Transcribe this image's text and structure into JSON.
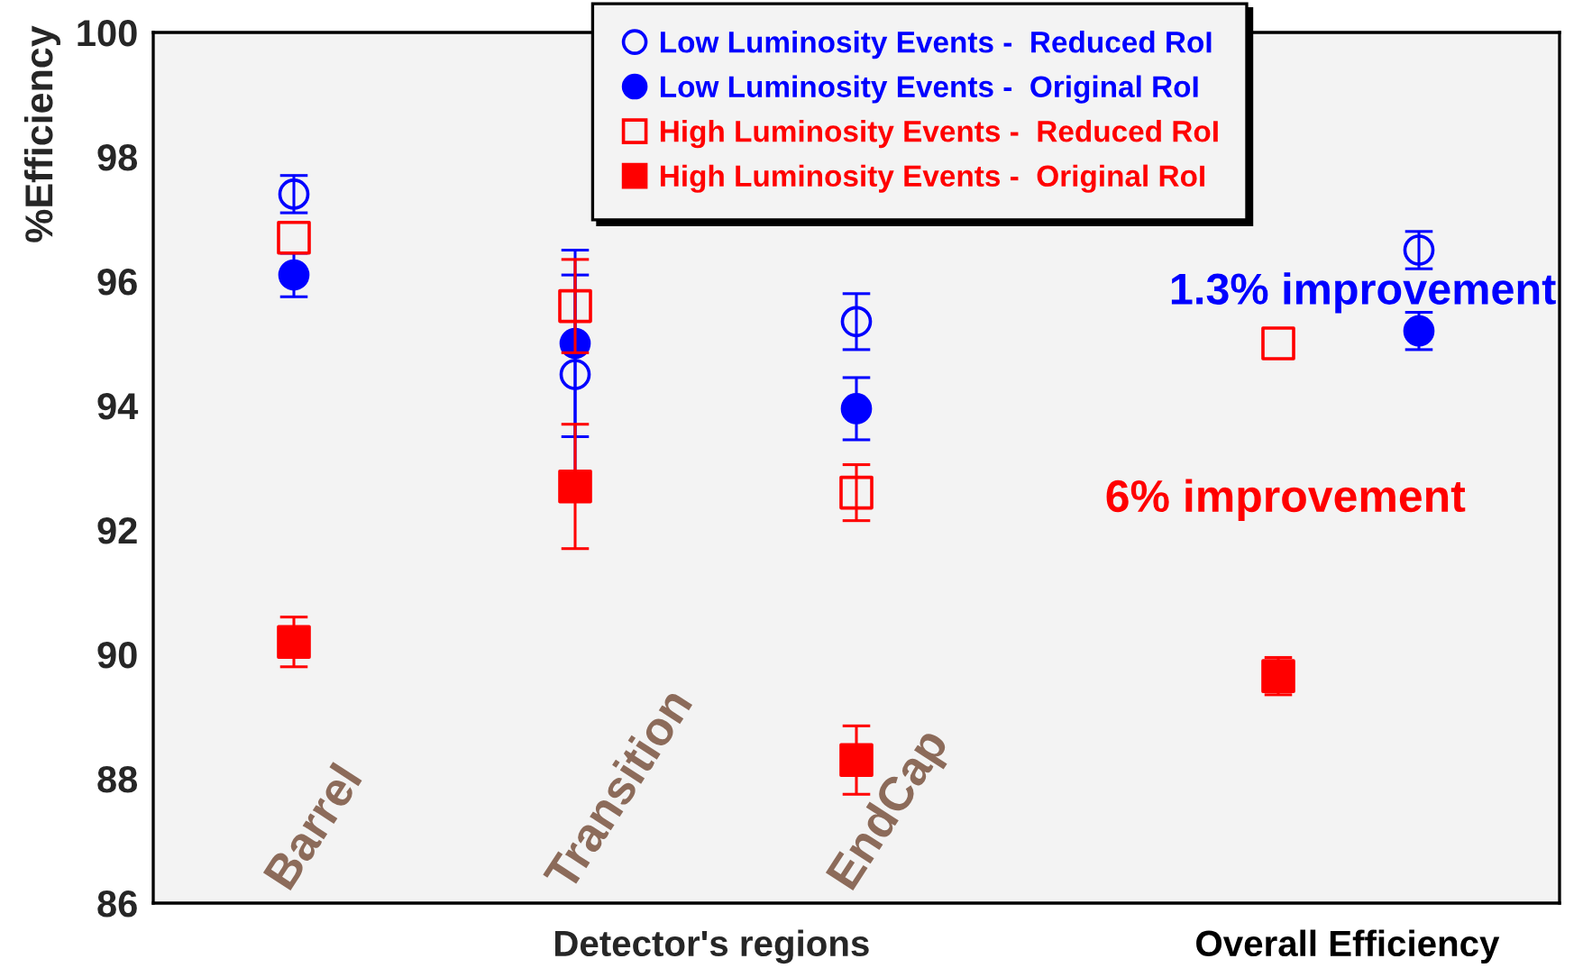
{
  "chart_data": {
    "type": "scatter",
    "ylabel": "%Efficiency",
    "xlabel": "Detector's regions",
    "annotations": [
      "1.3% improvement",
      "6% improvement",
      "Overall Efficiency"
    ],
    "categories": [
      "Barrel",
      null,
      "Transition",
      null,
      "EndCap",
      null,
      null,
      null,
      null
    ],
    "ylim": [
      86,
      100
    ],
    "yticks": [
      86,
      88,
      90,
      92,
      94,
      96,
      98,
      100
    ],
    "legend": "top",
    "series": [
      {
        "name": "Low Luminosity Events -  Reduced RoI",
        "color": "#0000ff",
        "marker": "circle",
        "values": [
          97.4,
          null,
          94.5,
          null,
          95.35,
          null,
          null,
          null,
          96.5
        ],
        "errors": [
          0.3,
          null,
          1.6,
          null,
          0.45,
          null,
          null,
          null,
          0.3
        ]
      },
      {
        "name": "Low Luminosity Events -  Original RoI",
        "color": "#0000ff",
        "marker": "circle",
        "values": [
          96.1,
          null,
          95.0,
          null,
          93.95,
          null,
          null,
          null,
          95.2
        ],
        "errors": [
          0.35,
          null,
          1.5,
          null,
          0.5,
          null,
          null,
          null,
          0.3
        ]
      },
      {
        "name": "High Luminosity Events -  Reduced RoI",
        "color": "#ff0000",
        "marker": "square",
        "values": [
          96.7,
          null,
          95.6,
          null,
          92.6,
          null,
          null,
          95.0,
          null
        ],
        "errors": [
          null,
          null,
          0.75,
          null,
          0.45,
          null,
          null,
          null,
          null
        ]
      },
      {
        "name": "High Luminosity Events -  Original RoI",
        "color": "#ff0000",
        "marker": "square",
        "values": [
          90.2,
          null,
          92.7,
          null,
          88.3,
          null,
          null,
          89.65,
          null
        ],
        "errors": [
          0.4,
          null,
          1.0,
          null,
          0.55,
          null,
          null,
          0.3,
          null
        ]
      }
    ]
  }
}
